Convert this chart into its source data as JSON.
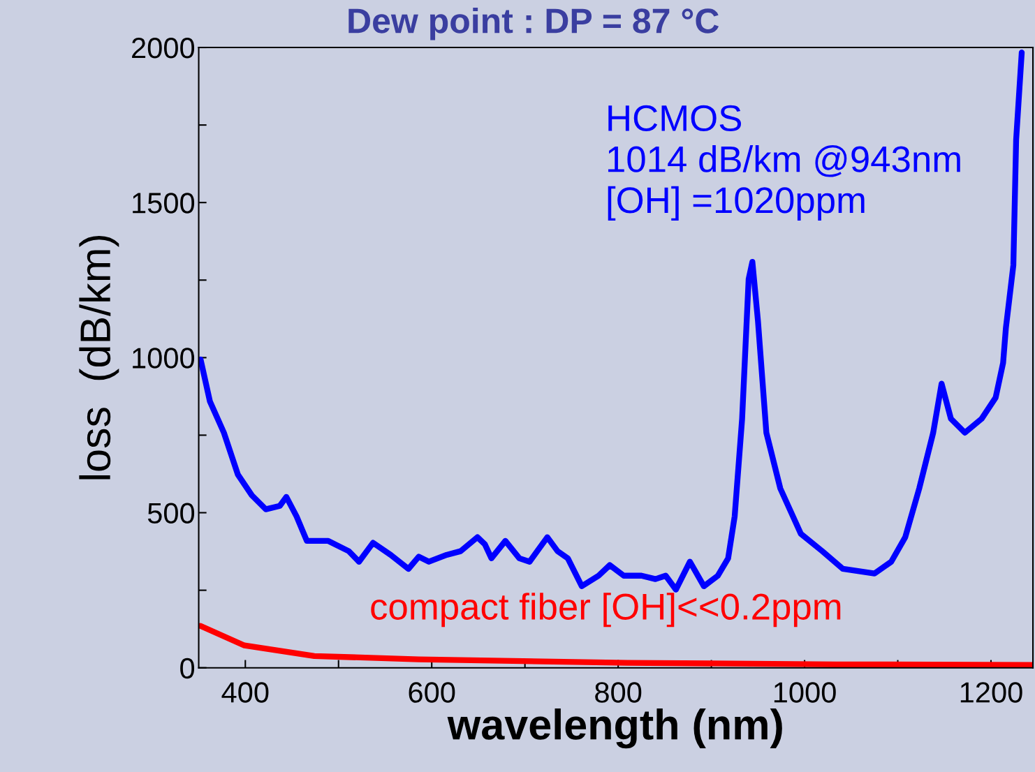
{
  "chart_data": {
    "type": "line",
    "title": "Dew point : DP = 87 °C",
    "xlabel": "wavelength (nm)",
    "ylabel": "loss  (dB/km)",
    "xlim": [
      350,
      1245
    ],
    "ylim": [
      0,
      2000
    ],
    "xticks": [
      400,
      {
        "value": 500,
        "label": null
      },
      600,
      {
        "value": 700,
        "label": null
      },
      800,
      {
        "value": 900,
        "label": null
      },
      1000,
      {
        "value": 1100,
        "label": null
      },
      1200
    ],
    "yticks": [
      0,
      {
        "value": 250,
        "label": null
      },
      500,
      {
        "value": 750,
        "label": null
      },
      1000,
      {
        "value": 1250,
        "label": null
      },
      1500,
      {
        "value": 1750,
        "label": null
      },
      2000
    ],
    "grid": false,
    "legend": false,
    "marker": "none",
    "line_style": "solid",
    "annotations": [
      "HCMOS\n1014 dB/km @943nm\n[OH] =1020ppm",
      "compact fiber [OH]<<0.2ppm"
    ],
    "series": [
      {
        "color": "#0000ff",
        "x": [
          352,
          362,
          377,
          392,
          407,
          422,
          437,
          444,
          455,
          466,
          489,
          511,
          522,
          537,
          556,
          575,
          586,
          597,
          616,
          631,
          649,
          657,
          664,
          679,
          694,
          705,
          724,
          735,
          746,
          761,
          779,
          791,
          806,
          825,
          840,
          851,
          862,
          877,
          892,
          907,
          918,
          925,
          933,
          940,
          944,
          950,
          959,
          974,
          996,
          1019,
          1041,
          1075,
          1093,
          1108,
          1123,
          1138,
          1147,
          1157,
          1172,
          1190,
          1205,
          1213,
          1216,
          1224,
          1227,
          1233
        ],
        "values": [
          994,
          859,
          758,
          623,
          556,
          511,
          522,
          551,
          488,
          409,
          409,
          376,
          342,
          403,
          364,
          319,
          358,
          342,
          364,
          376,
          421,
          398,
          353,
          409,
          353,
          342,
          421,
          376,
          353,
          263,
          297,
          331,
          297,
          297,
          286,
          297,
          252,
          342,
          263,
          297,
          353,
          488,
          803,
          1253,
          1309,
          1118,
          758,
          578,
          432,
          376,
          319,
          304,
          342,
          421,
          578,
          758,
          916,
          803,
          758,
          803,
          871,
          983,
          1096,
          1298,
          1703,
          1984
        ]
      },
      {
        "color": "#ff0000",
        "x": [
          352,
          399,
          474,
          586,
          810,
          1034,
          1244
        ],
        "values": [
          135,
          72,
          38,
          27,
          16,
          11,
          9
        ]
      }
    ]
  }
}
